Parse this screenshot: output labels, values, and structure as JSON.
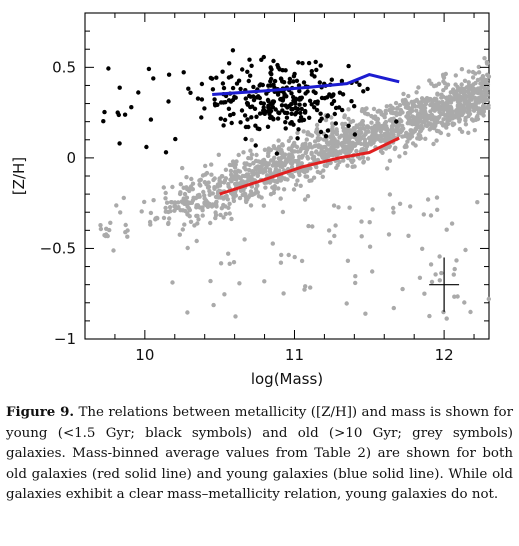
{
  "chart_data": {
    "type": "scatter",
    "xlabel": "log(Mass)",
    "ylabel": "[Z/H]",
    "xlim": [
      9.6,
      12.3
    ],
    "ylim": [
      -1.0,
      0.8
    ],
    "x_ticks": [
      10,
      11,
      12
    ],
    "y_ticks": [
      0.5,
      0,
      -0.5,
      -1
    ],
    "y_tick_labels": [
      "0.5",
      "0",
      "−0.5",
      "−1"
    ],
    "series": [
      {
        "name": "old galaxies (>10 Gyr)",
        "role": "scatter",
        "marker": "circle",
        "color": "#aaaaaa",
        "count_approx": 1600
      },
      {
        "name": "young galaxies (<1.5 Gyr)",
        "role": "scatter",
        "marker": "circle",
        "color": "#000000",
        "count_approx": 300
      },
      {
        "name": "old galaxies mass-binned average",
        "role": "line",
        "color": "#e02020",
        "x": [
          10.5,
          10.8,
          11.05,
          11.3,
          11.5,
          11.7
        ],
        "y": [
          -0.2,
          -0.12,
          -0.05,
          0.0,
          0.03,
          0.11
        ]
      },
      {
        "name": "young galaxies mass-binned average",
        "role": "line",
        "color": "#1c1cd0",
        "x": [
          10.45,
          10.8,
          11.1,
          11.35,
          11.5,
          11.7
        ],
        "y": [
          0.35,
          0.37,
          0.39,
          0.41,
          0.46,
          0.42
        ]
      }
    ],
    "error_bar": {
      "x": 12.0,
      "y": -0.7,
      "xerr": 0.1,
      "yerr": 0.15
    },
    "legend": "none",
    "grid": false
  },
  "caption": {
    "label": "Figure 9.",
    "text": "The relations between metallicity ([Z/H]) and mass is shown for young (<1.5 Gyr; black symbols) and old (>10 Gyr; grey symbols) galaxies. Mass-binned average values from Table 2) are shown for both old galaxies (red solid line) and young galaxies (blue solid line). While old galaxies exhibit a clear mass–metallicity relation, young galaxies do not."
  }
}
